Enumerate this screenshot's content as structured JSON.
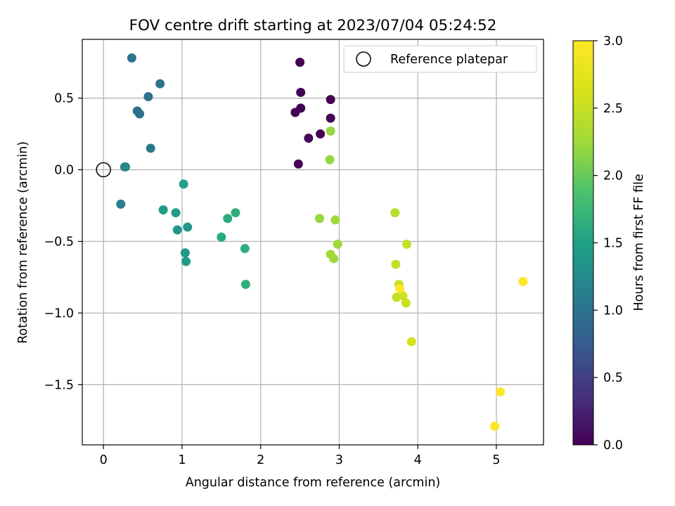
{
  "chart_data": {
    "type": "scatter",
    "title": "FOV centre drift starting at 2023/07/04 05:24:52",
    "xlabel": "Angular distance from reference (arcmin)",
    "ylabel": "Rotation from reference (arcmin)",
    "xlim": [
      -0.27,
      5.6
    ],
    "ylim": [
      -1.92,
      0.91
    ],
    "xticks": [
      0,
      1,
      2,
      3,
      4,
      5
    ],
    "yticks": [
      -1.5,
      -1.0,
      -0.5,
      0.0,
      0.5
    ],
    "xtick_labels": [
      "0",
      "1",
      "2",
      "3",
      "4",
      "5"
    ],
    "ytick_labels": [
      "−1.5",
      "−1.0",
      "−0.5",
      "0.0",
      "0.5"
    ],
    "grid": true,
    "legend": {
      "placement": "top-right",
      "entries": [
        "Reference platepar"
      ]
    },
    "colorbar": {
      "label": "Hours from first FF file",
      "colormap": "viridis",
      "range": [
        0.0,
        3.0
      ],
      "ticks": [
        0.0,
        0.5,
        1.0,
        1.5,
        2.0,
        2.5,
        3.0
      ],
      "tick_labels": [
        "0.0",
        "0.5",
        "1.0",
        "1.5",
        "2.0",
        "2.5",
        "3.0"
      ]
    },
    "reference_point": {
      "x": 0.0,
      "y": 0.0
    },
    "points": [
      {
        "x": 2.5,
        "y": 0.75,
        "hours": 0.0
      },
      {
        "x": 2.51,
        "y": 0.54,
        "hours": 0.0
      },
      {
        "x": 2.89,
        "y": 0.49,
        "hours": 0.0
      },
      {
        "x": 2.44,
        "y": 0.4,
        "hours": 0.0
      },
      {
        "x": 2.51,
        "y": 0.43,
        "hours": 0.0
      },
      {
        "x": 2.89,
        "y": 0.36,
        "hours": 0.0
      },
      {
        "x": 2.76,
        "y": 0.25,
        "hours": 0.0
      },
      {
        "x": 2.61,
        "y": 0.22,
        "hours": 0.05
      },
      {
        "x": 2.48,
        "y": 0.04,
        "hours": 0.0
      },
      {
        "x": 0.36,
        "y": 0.78,
        "hours": 1.0
      },
      {
        "x": 0.72,
        "y": 0.6,
        "hours": 1.0
      },
      {
        "x": 0.57,
        "y": 0.51,
        "hours": 1.0
      },
      {
        "x": 0.43,
        "y": 0.41,
        "hours": 0.95
      },
      {
        "x": 0.46,
        "y": 0.39,
        "hours": 0.95
      },
      {
        "x": 0.6,
        "y": 0.15,
        "hours": 1.05
      },
      {
        "x": 0.27,
        "y": 0.02,
        "hours": 1.2
      },
      {
        "x": 0.28,
        "y": 0.02,
        "hours": 1.2
      },
      {
        "x": 0.22,
        "y": -0.24,
        "hours": 1.1
      },
      {
        "x": 1.02,
        "y": -0.1,
        "hours": 1.5
      },
      {
        "x": 0.76,
        "y": -0.28,
        "hours": 1.45
      },
      {
        "x": 0.92,
        "y": -0.3,
        "hours": 1.45
      },
      {
        "x": 0.94,
        "y": -0.42,
        "hours": 1.4
      },
      {
        "x": 1.07,
        "y": -0.4,
        "hours": 1.4
      },
      {
        "x": 1.04,
        "y": -0.58,
        "hours": 1.4
      },
      {
        "x": 1.05,
        "y": -0.64,
        "hours": 1.45
      },
      {
        "x": 1.5,
        "y": -0.47,
        "hours": 1.6
      },
      {
        "x": 1.58,
        "y": -0.34,
        "hours": 1.6
      },
      {
        "x": 1.68,
        "y": -0.3,
        "hours": 1.65
      },
      {
        "x": 1.8,
        "y": -0.55,
        "hours": 1.65
      },
      {
        "x": 1.81,
        "y": -0.8,
        "hours": 1.65
      },
      {
        "x": 2.89,
        "y": 0.27,
        "hours": 2.2
      },
      {
        "x": 2.88,
        "y": 0.07,
        "hours": 2.2
      },
      {
        "x": 2.75,
        "y": -0.34,
        "hours": 2.2
      },
      {
        "x": 2.95,
        "y": -0.35,
        "hours": 2.25
      },
      {
        "x": 2.98,
        "y": -0.52,
        "hours": 2.25
      },
      {
        "x": 2.89,
        "y": -0.59,
        "hours": 2.25
      },
      {
        "x": 2.93,
        "y": -0.62,
        "hours": 2.25
      },
      {
        "x": 3.71,
        "y": -0.3,
        "hours": 2.4
      },
      {
        "x": 3.72,
        "y": -0.66,
        "hours": 2.5
      },
      {
        "x": 3.86,
        "y": -0.52,
        "hours": 2.5
      },
      {
        "x": 3.76,
        "y": -0.8,
        "hours": 2.5
      },
      {
        "x": 3.73,
        "y": -0.89,
        "hours": 2.5
      },
      {
        "x": 3.81,
        "y": -0.88,
        "hours": 2.55
      },
      {
        "x": 3.85,
        "y": -0.93,
        "hours": 2.55
      },
      {
        "x": 3.92,
        "y": -1.2,
        "hours": 2.6
      },
      {
        "x": 3.77,
        "y": -0.83,
        "hours": 3.0
      },
      {
        "x": 5.34,
        "y": -0.78,
        "hours": 3.0
      },
      {
        "x": 5.05,
        "y": -1.55,
        "hours": 3.0
      },
      {
        "x": 4.98,
        "y": -1.79,
        "hours": 3.0
      }
    ]
  }
}
